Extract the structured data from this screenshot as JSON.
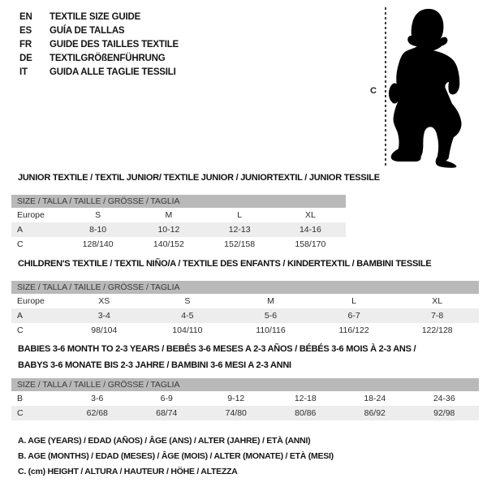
{
  "colors": {
    "background": "#ffffff",
    "table_header_bg": "#b9b9b9",
    "row_shaded_bg": "#ededed",
    "silhouette": "#000000",
    "text": "#282828"
  },
  "language_header": {
    "items": [
      {
        "code": "EN",
        "label": "TEXTILE SIZE GUIDE"
      },
      {
        "code": "ES",
        "label": "GUÍA DE TALLAS"
      },
      {
        "code": "FR",
        "label": "GUIDE DES TAILLES TEXTILE"
      },
      {
        "code": "DE",
        "label": "TEXTILGRÖßENFÜHRUNG"
      },
      {
        "code": "IT",
        "label": "GUIDA ALLE TAGLIE TESSILI"
      }
    ]
  },
  "figure": {
    "silhouette_icon": "baby-toddler-silhouette",
    "measure_label": "C"
  },
  "tables": [
    {
      "title_lines": [
        "JUNIOR TEXTILE / TEXTIL JUNIOR/ TEXTILE JUNIOR / JUNIORTEXTIL / JUNIOR TESSILE"
      ],
      "size_header": "SIZE / TALLA / TAILLE / GRÖSSE / TAGLIA",
      "rows": [
        {
          "label": "Europe",
          "values": [
            "S",
            "M",
            "L",
            "XL"
          ],
          "shaded": false
        },
        {
          "label": "A",
          "values": [
            "8-10",
            "10-12",
            "12-13",
            "14-16"
          ],
          "shaded": true
        },
        {
          "label": "C",
          "values": [
            "128/140",
            "140/152",
            "152/158",
            "158/170"
          ],
          "shaded": false
        }
      ]
    },
    {
      "title_lines": [
        "CHILDREN'S TEXTILE / TEXTIL NIÑO/A / TEXTILE DES ENFANTS / KINDERTEXTIL / BAMBINI TESSILE"
      ],
      "size_header": "SIZE / TALLA / TAILLE / GRÖSSE / TAGLIA",
      "rows": [
        {
          "label": "Europe",
          "values": [
            "XS",
            "S",
            "M",
            "L",
            "XL"
          ],
          "shaded": false
        },
        {
          "label": "A",
          "values": [
            "3-4",
            "4-5",
            "5-6",
            "6-7",
            "7-8"
          ],
          "shaded": true
        },
        {
          "label": "C",
          "values": [
            "98/104",
            "104/110",
            "110/116",
            "116/122",
            "122/128"
          ],
          "shaded": false
        }
      ]
    },
    {
      "title_lines": [
        "BABIES 3-6 MONTH TO 2-3 YEARS / BEBÉS 3-6 MESES A 2-3 AÑOS / BÉBÉS 3-6 MOIS À 2-3 ANS /",
        "BABYS 3-6 MONATE BIS 2-3 JAHRE / BAMBINI 3-6 MESI A 2-3 ANNI"
      ],
      "size_header": "SIZE / TALLA / TAILLE / GRÖSSE / TAGLIA",
      "rows": [
        {
          "label": "B",
          "values": [
            "3-6",
            "6-9",
            "9-12",
            "12-18",
            "18-24",
            "24-36"
          ],
          "shaded": false
        },
        {
          "label": "C",
          "values": [
            "62/68",
            "68/74",
            "74/80",
            "80/86",
            "86/92",
            "92/98"
          ],
          "shaded": true
        }
      ]
    }
  ],
  "legend": {
    "lines": [
      "A. AGE (YEARS) / EDAD (AÑOS) / ÂGE (ANS) / ALTER (JAHRE) / ETÀ (ANNI)",
      "B. AGE (MONTHS) / EDAD (MESES) / ÂGE (MOIS) / ALTER (MONATE) / ETÀ (MESI)",
      "C. (cm) HEIGHT / ALTURA / HAUTEUR / HÖHE / ALTEZZA"
    ]
  }
}
